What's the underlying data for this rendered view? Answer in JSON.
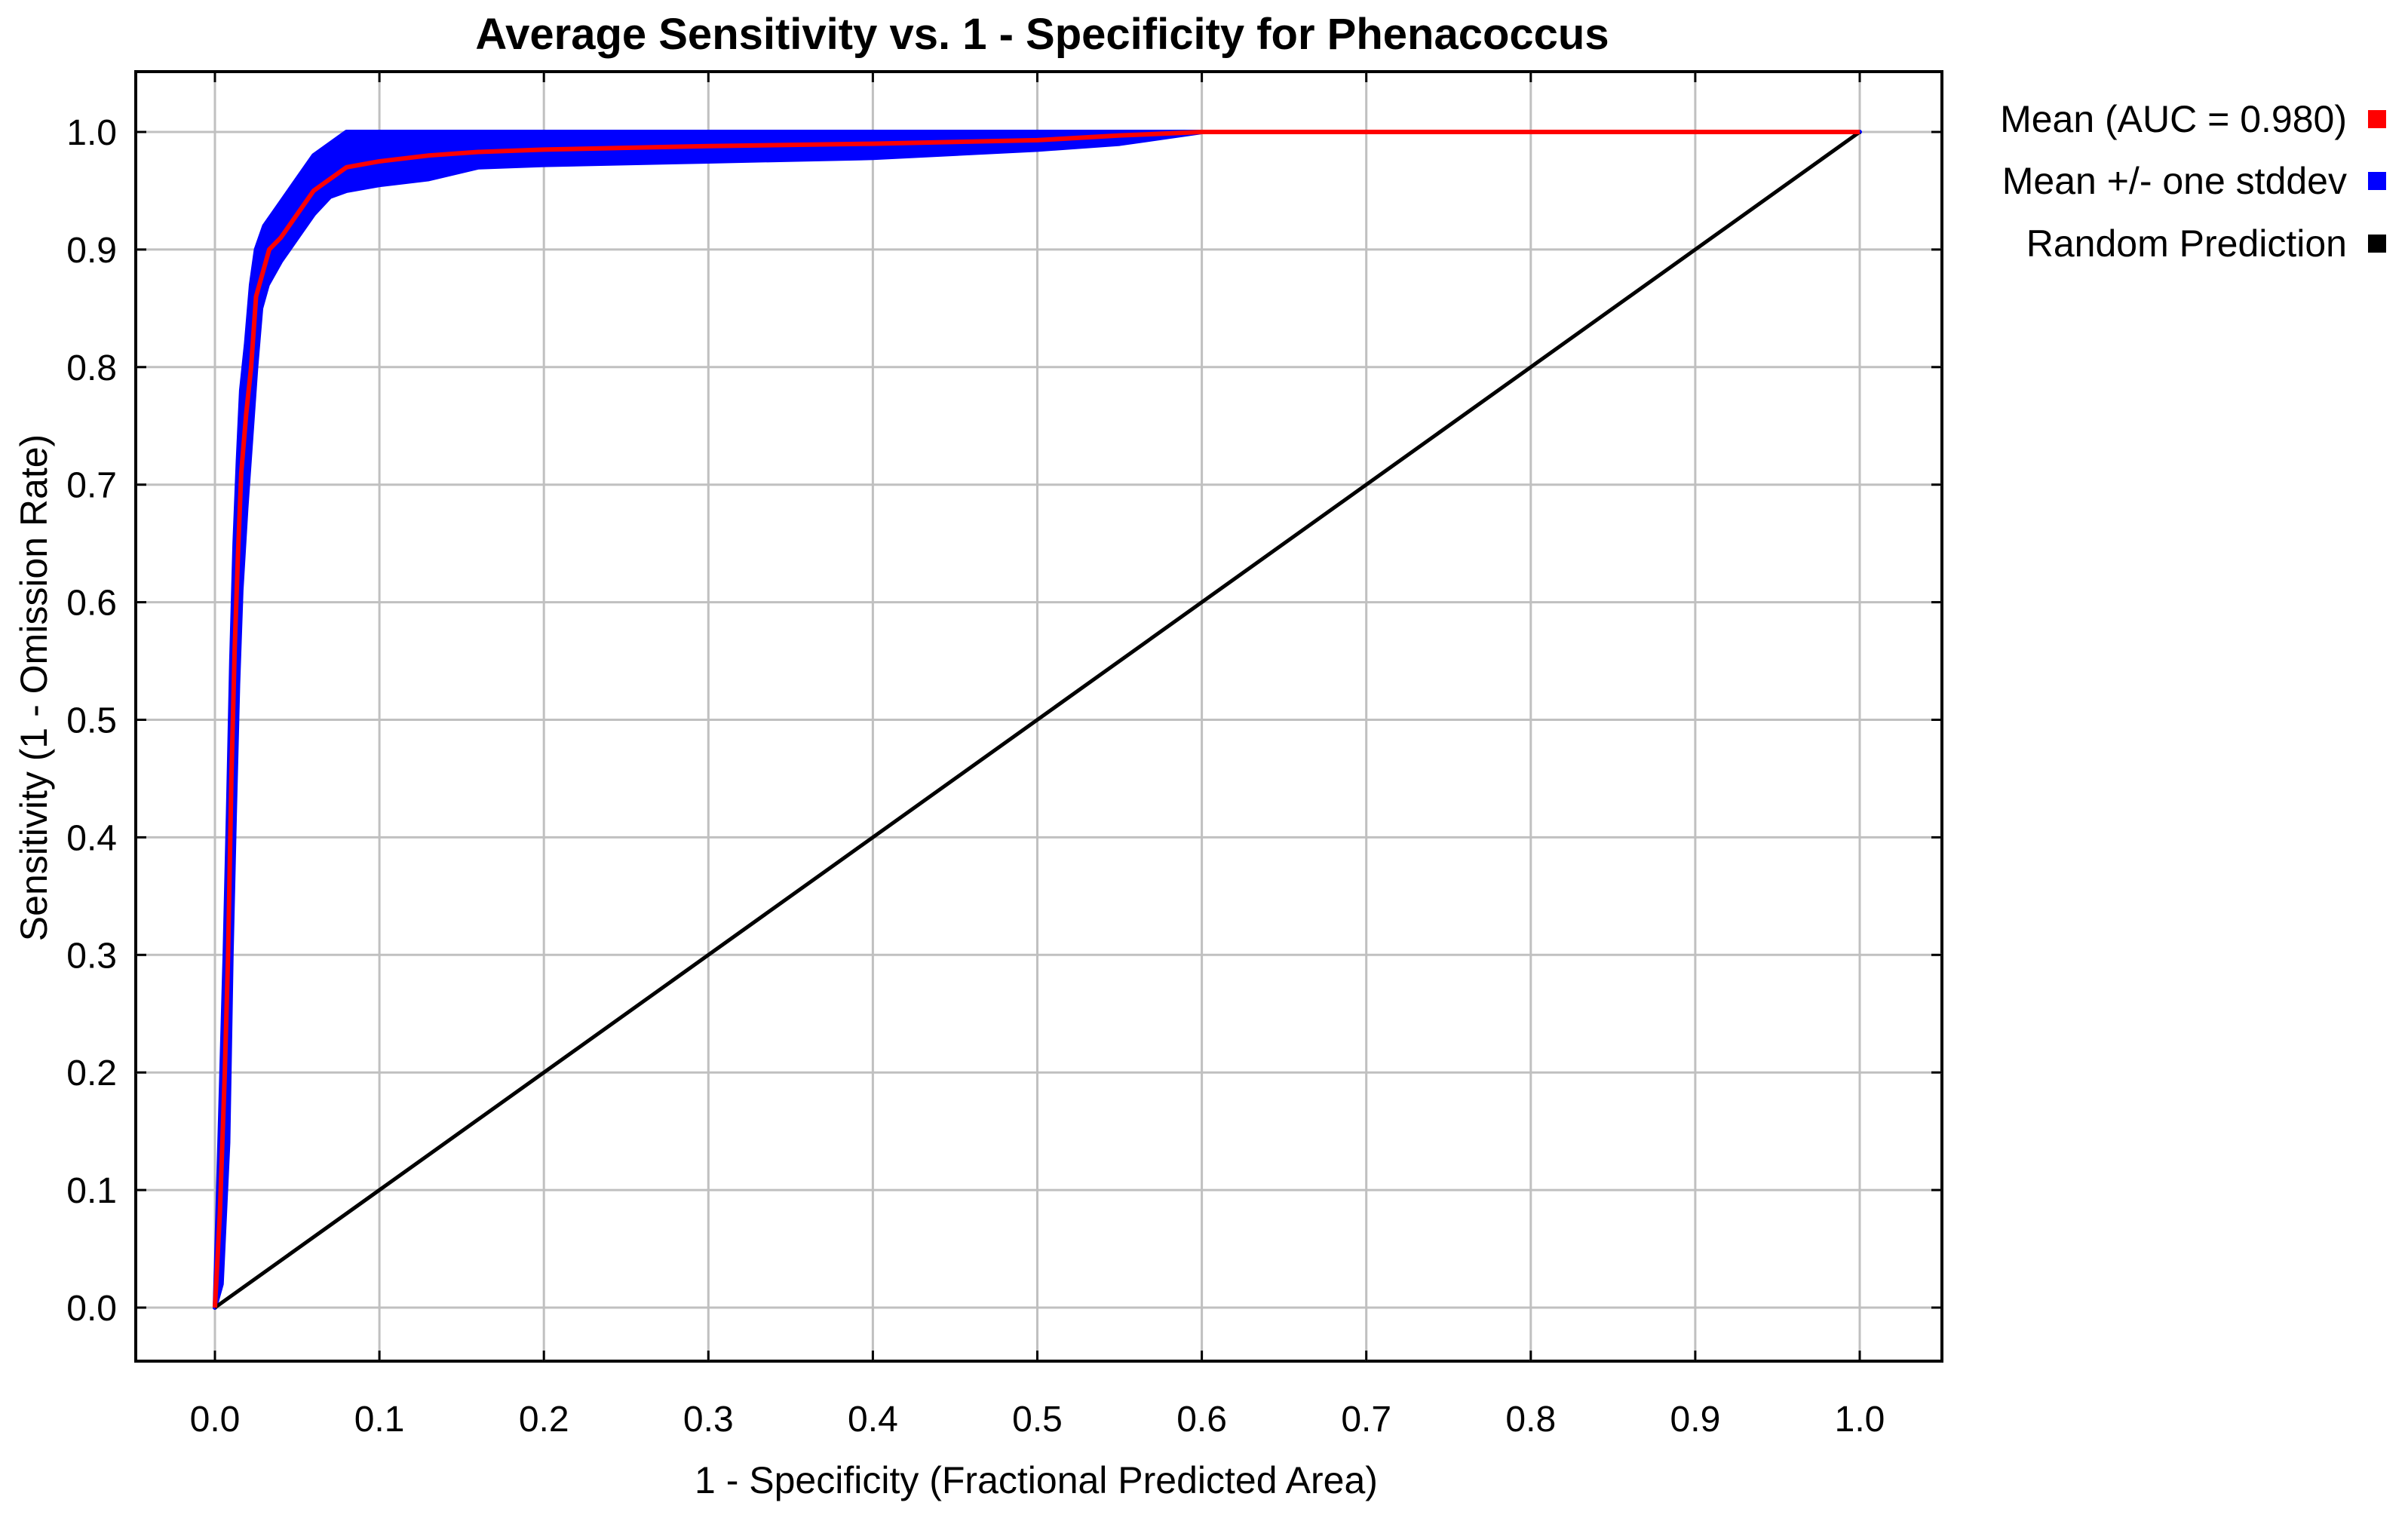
{
  "chart_data": {
    "type": "line",
    "title": "Average Sensitivity vs. 1 - Specificity for Phenacoccus",
    "xlabel": "1 - Specificity (Fractional Predicted Area)",
    "ylabel": "Sensitivity (1 - Omission Rate)",
    "xlim": [
      0,
      1
    ],
    "ylim": [
      0,
      1
    ],
    "x_ticks": [
      "0.0",
      "0.1",
      "0.2",
      "0.3",
      "0.4",
      "0.5",
      "0.6",
      "0.7",
      "0.8",
      "0.9",
      "1.0"
    ],
    "y_ticks": [
      "0.0",
      "0.1",
      "0.2",
      "0.3",
      "0.4",
      "0.5",
      "0.6",
      "0.7",
      "0.8",
      "0.9",
      "1.0"
    ],
    "grid": true,
    "legend_position": "right-top",
    "series": [
      {
        "name": "Mean (AUC = 0.980)",
        "color": "#ff0000",
        "points": [
          [
            0,
            0
          ],
          [
            0.003,
            0.08
          ],
          [
            0.006,
            0.2
          ],
          [
            0.008,
            0.3
          ],
          [
            0.01,
            0.45
          ],
          [
            0.012,
            0.56
          ],
          [
            0.014,
            0.64
          ],
          [
            0.016,
            0.71
          ],
          [
            0.019,
            0.76
          ],
          [
            0.022,
            0.8
          ],
          [
            0.025,
            0.86
          ],
          [
            0.029,
            0.88
          ],
          [
            0.033,
            0.9
          ],
          [
            0.04,
            0.91
          ],
          [
            0.05,
            0.93
          ],
          [
            0.06,
            0.95
          ],
          [
            0.07,
            0.96
          ],
          [
            0.08,
            0.97
          ],
          [
            0.1,
            0.975
          ],
          [
            0.13,
            0.98
          ],
          [
            0.16,
            0.983
          ],
          [
            0.2,
            0.985
          ],
          [
            0.3,
            0.988
          ],
          [
            0.4,
            0.99
          ],
          [
            0.5,
            0.993
          ],
          [
            0.55,
            0.997
          ],
          [
            0.6,
            1.0
          ],
          [
            1.0,
            1.0
          ]
        ]
      },
      {
        "name": "Mean +/- one stddev",
        "color": "#0000ff",
        "upper": [
          [
            0,
            0
          ],
          [
            0.003,
            0.15
          ],
          [
            0.006,
            0.3
          ],
          [
            0.008,
            0.42
          ],
          [
            0.01,
            0.55
          ],
          [
            0.012,
            0.65
          ],
          [
            0.014,
            0.72
          ],
          [
            0.016,
            0.78
          ],
          [
            0.019,
            0.82
          ],
          [
            0.022,
            0.87
          ],
          [
            0.025,
            0.9
          ],
          [
            0.03,
            0.92
          ],
          [
            0.04,
            0.94
          ],
          [
            0.05,
            0.96
          ],
          [
            0.06,
            0.98
          ],
          [
            0.07,
            0.99
          ],
          [
            0.08,
            1.0
          ],
          [
            1.0,
            1.0
          ]
        ],
        "lower": [
          [
            0,
            0
          ],
          [
            0.004,
            0.02
          ],
          [
            0.008,
            0.14
          ],
          [
            0.01,
            0.3
          ],
          [
            0.012,
            0.42
          ],
          [
            0.014,
            0.53
          ],
          [
            0.016,
            0.61
          ],
          [
            0.019,
            0.68
          ],
          [
            0.022,
            0.74
          ],
          [
            0.025,
            0.8
          ],
          [
            0.028,
            0.85
          ],
          [
            0.032,
            0.87
          ],
          [
            0.04,
            0.89
          ],
          [
            0.05,
            0.91
          ],
          [
            0.06,
            0.93
          ],
          [
            0.07,
            0.945
          ],
          [
            0.08,
            0.95
          ],
          [
            0.1,
            0.955
          ],
          [
            0.13,
            0.96
          ],
          [
            0.16,
            0.97
          ],
          [
            0.2,
            0.972
          ],
          [
            0.3,
            0.975
          ],
          [
            0.4,
            0.978
          ],
          [
            0.5,
            0.985
          ],
          [
            0.55,
            0.99
          ],
          [
            0.6,
            1.0
          ],
          [
            1.0,
            1.0
          ]
        ]
      },
      {
        "name": "Random Prediction",
        "color": "#000000",
        "points": [
          [
            0,
            0
          ],
          [
            1,
            1
          ]
        ]
      }
    ]
  }
}
